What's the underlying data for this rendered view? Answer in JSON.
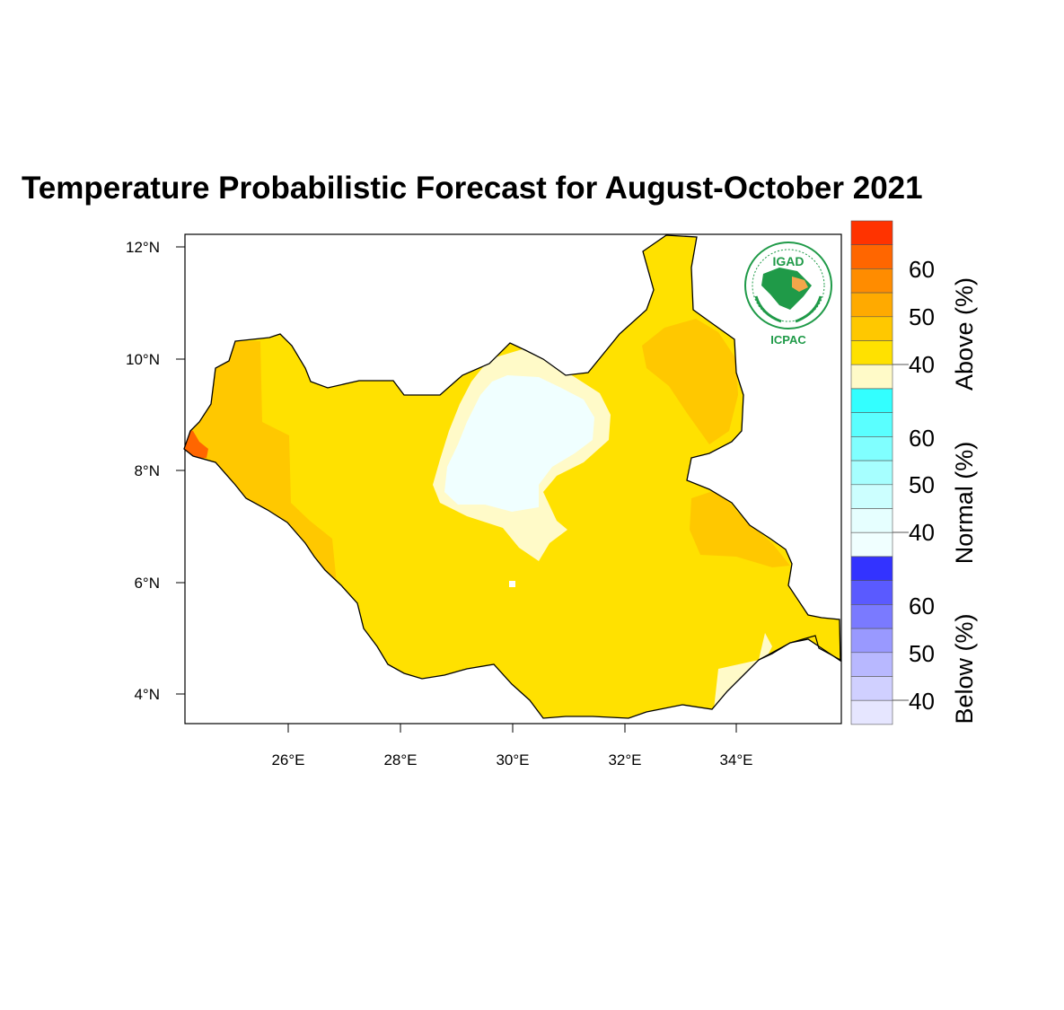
{
  "title": "Temperature Probabilistic Forecast for August-October 2021",
  "logo": {
    "top_text": "IGAD",
    "bottom_text": "ICPAC",
    "colors": {
      "green": "#1f9a48",
      "orange": "#f3a64a"
    }
  },
  "map": {
    "lat_ticks": [
      "12°N",
      "10°N",
      "8°N",
      "6°N",
      "4°N"
    ],
    "lon_ticks": [
      "26°E",
      "28°E",
      "30°E",
      "32°E",
      "34°E"
    ],
    "region_colors": {
      "above_40": "#ffe100",
      "above_45": "#ffc800",
      "above_60": "#ff6600",
      "above_35": "#fffac8",
      "normal_35": "#f0ffff"
    }
  },
  "colorbar": {
    "groups": [
      {
        "label": "Above (%)",
        "ticks": [
          "60",
          "50",
          "40"
        ],
        "colors": [
          "#ff3300",
          "#ff6600",
          "#ff8c00",
          "#ffaa00",
          "#ffc800",
          "#ffe100",
          "#fffac8"
        ]
      },
      {
        "label": "Normal (%)",
        "ticks": [
          "60",
          "50",
          "40"
        ],
        "colors": [
          "#33ffff",
          "#5affff",
          "#80ffff",
          "#a6ffff",
          "#ccffff",
          "#e6ffff",
          "#f0ffff"
        ]
      },
      {
        "label": "Below (%)",
        "ticks": [
          "60",
          "50",
          "40"
        ],
        "colors": [
          "#3333ff",
          "#5a5aff",
          "#7a7aff",
          "#9999ff",
          "#b8b8ff",
          "#d0d0ff",
          "#e6e6ff"
        ]
      }
    ]
  }
}
